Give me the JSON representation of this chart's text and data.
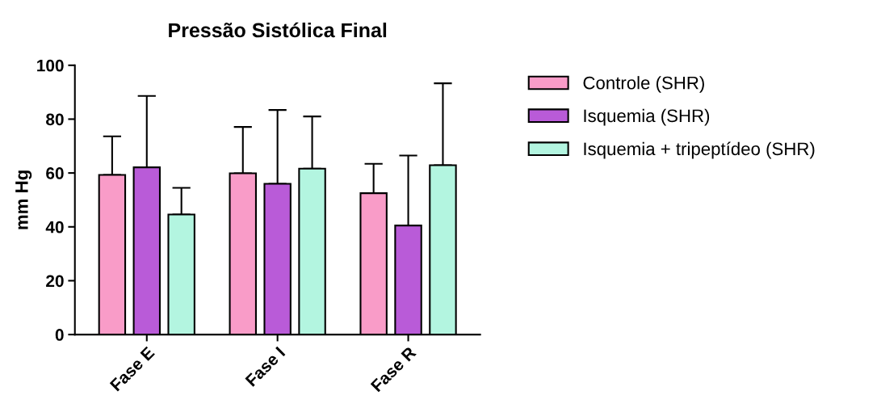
{
  "chart_data": {
    "type": "bar",
    "title": "Pressão Sistólica Final",
    "ylabel": "mm Hg",
    "categories": [
      "Fase E",
      "Fase I",
      "Fase R"
    ],
    "series": [
      {
        "name": "Controle (SHR)",
        "color": "#f99cc8",
        "values": [
          59.3,
          59.9,
          52.5
        ],
        "errors": [
          [
            59.3,
            73.6
          ],
          [
            59.9,
            77.1
          ],
          [
            52.5,
            63.4
          ]
        ]
      },
      {
        "name": "Isquemia (SHR)",
        "color": "#b95bd8",
        "values": [
          62.1,
          56.0,
          40.5
        ],
        "errors": [
          [
            62.1,
            88.6
          ],
          [
            56.0,
            83.4
          ],
          [
            40.5,
            66.5
          ]
        ]
      },
      {
        "name": "Isquemia + tripeptídeo (SHR)",
        "color": "#b3f5e0",
        "values": [
          44.6,
          61.6,
          62.9
        ],
        "errors": [
          [
            44.6,
            54.5
          ],
          [
            61.6,
            81.0
          ],
          [
            62.9,
            93.3
          ]
        ]
      }
    ],
    "ylim": [
      0,
      100
    ],
    "yticks": [
      0,
      20,
      40,
      60,
      80,
      100
    ],
    "grid": false,
    "legend": "right"
  }
}
